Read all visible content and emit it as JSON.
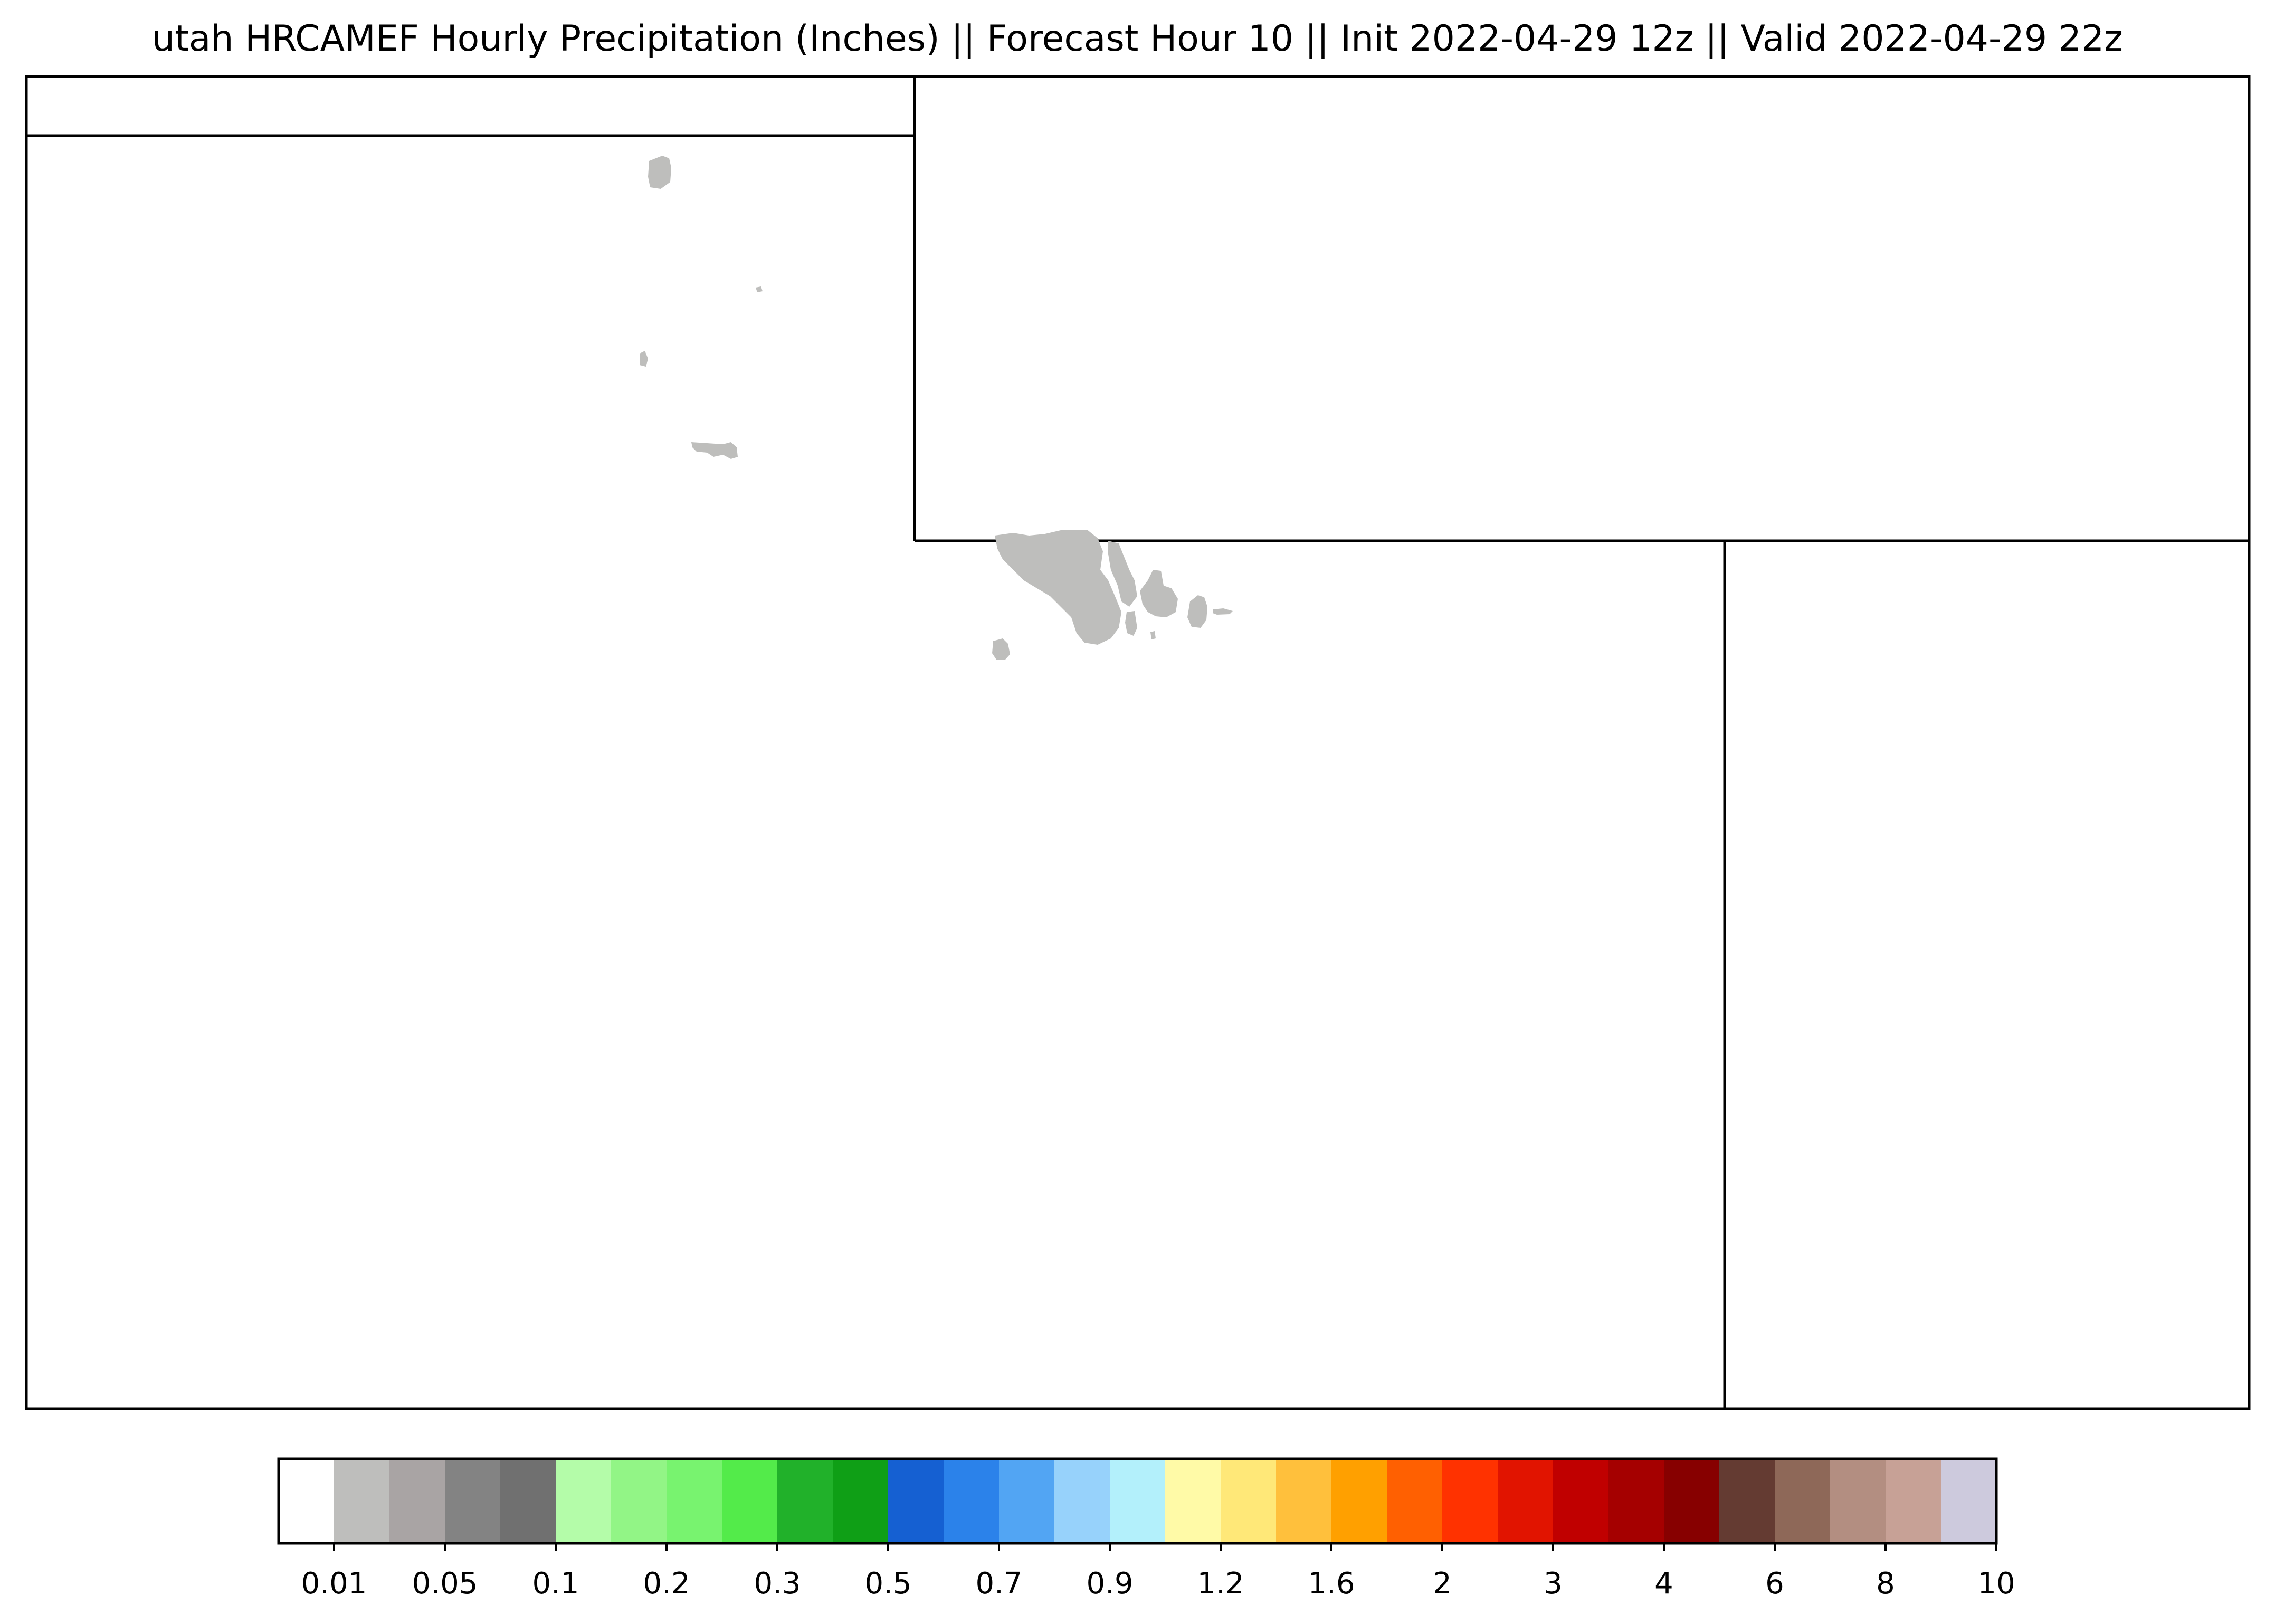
{
  "title": "utah HRCAMEF Hourly Precipitation (Inches) || Forecast Hour 10 || Init 2022-04-29 12z || Valid 2022-04-29 22z",
  "map": {
    "region": "utah",
    "precip_fill_color": "#bebebc",
    "border_color": "#000000"
  },
  "colorbar": {
    "colors": [
      "#ffffff",
      "#bebebc",
      "#a9a4a4",
      "#838383",
      "#707070",
      "#b4fca9",
      "#92f586",
      "#78f36f",
      "#53eb4a",
      "#21b12a",
      "#0f9f16",
      "#1560d2",
      "#2b82ea",
      "#52a5f3",
      "#97d2fb",
      "#b3f0fb",
      "#fffaa7",
      "#ffe878",
      "#ffc03c",
      "#ffa000",
      "#ff6001",
      "#ff3200",
      "#e11400",
      "#c00000",
      "#a50000",
      "#870000",
      "#643b32",
      "#8e6858",
      "#b38e81",
      "#c7a196",
      "#cdcadd"
    ],
    "tick_labels": [
      "0.01",
      "0.05",
      "0.1",
      "0.2",
      "0.3",
      "0.5",
      "0.7",
      "0.9",
      "1.2",
      "1.6",
      "2",
      "3",
      "4",
      "6",
      "8",
      "10"
    ]
  }
}
